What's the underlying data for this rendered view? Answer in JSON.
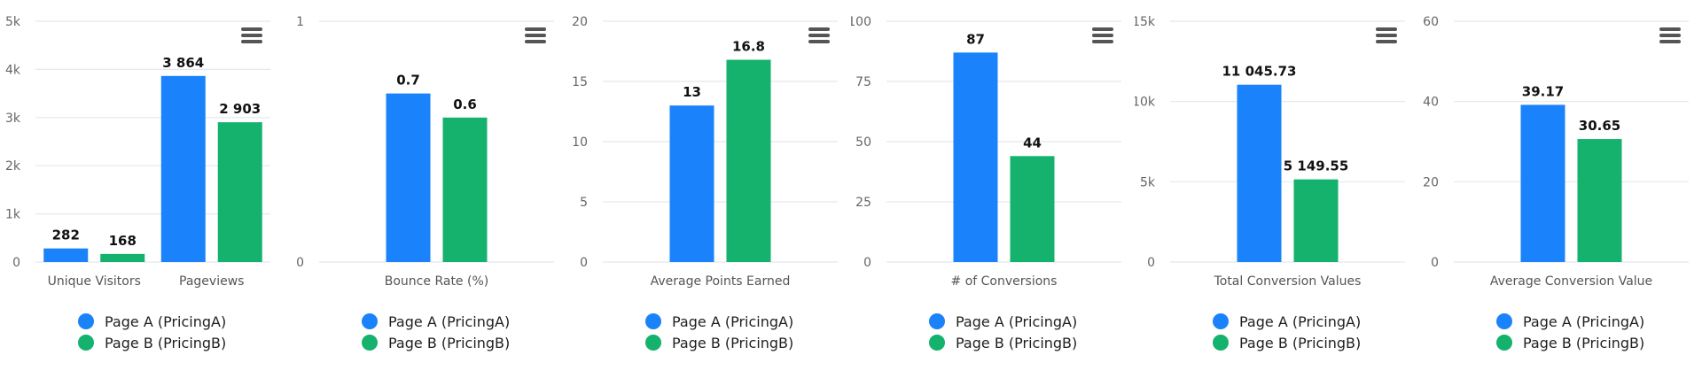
{
  "colors": {
    "series_a": "#1a82fb",
    "series_b": "#14b26c",
    "grid": "#e3e8f0",
    "menu_icon": "#555555"
  },
  "legend": {
    "series_a": "Page A (PricingA)",
    "series_b": "Page B (PricingB)"
  },
  "menu_icon": "hamburger-menu-icon",
  "chart_data": [
    {
      "type": "bar",
      "categories": [
        "Unique Visitors",
        "Pageviews"
      ],
      "series": [
        {
          "name": "Page A (PricingA)",
          "values": [
            282,
            3864
          ],
          "labels": [
            "282",
            "3 864"
          ]
        },
        {
          "name": "Page B (PricingB)",
          "values": [
            168,
            2903
          ],
          "labels": [
            "168",
            "2 903"
          ]
        }
      ],
      "ylim": [
        0,
        5000
      ],
      "yticks": [
        0,
        1000,
        2000,
        3000,
        4000,
        5000
      ],
      "ytick_labels": [
        "0",
        "1k",
        "2k",
        "3k",
        "4k",
        "5k"
      ],
      "grid": true,
      "legend_position": "bottom"
    },
    {
      "type": "bar",
      "categories": [
        "Bounce Rate (%)"
      ],
      "series": [
        {
          "name": "Page A (PricingA)",
          "values": [
            0.7
          ],
          "labels": [
            "0.7"
          ]
        },
        {
          "name": "Page B (PricingB)",
          "values": [
            0.6
          ],
          "labels": [
            "0.6"
          ]
        }
      ],
      "ylim": [
        0,
        1
      ],
      "yticks": [
        0,
        1
      ],
      "ytick_labels": [
        "0",
        "1"
      ],
      "grid": true,
      "legend_position": "bottom"
    },
    {
      "type": "bar",
      "categories": [
        "Average Points Earned"
      ],
      "series": [
        {
          "name": "Page A (PricingA)",
          "values": [
            13
          ],
          "labels": [
            "13"
          ]
        },
        {
          "name": "Page B (PricingB)",
          "values": [
            16.8
          ],
          "labels": [
            "16.8"
          ]
        }
      ],
      "ylim": [
        0,
        20
      ],
      "yticks": [
        0,
        5,
        10,
        15,
        20
      ],
      "ytick_labels": [
        "0",
        "5",
        "10",
        "15",
        "20"
      ],
      "grid": true,
      "legend_position": "bottom"
    },
    {
      "type": "bar",
      "categories": [
        "# of Conversions"
      ],
      "series": [
        {
          "name": "Page A (PricingA)",
          "values": [
            87
          ],
          "labels": [
            "87"
          ]
        },
        {
          "name": "Page B (PricingB)",
          "values": [
            44
          ],
          "labels": [
            "44"
          ]
        }
      ],
      "ylim": [
        0,
        100
      ],
      "yticks": [
        0,
        25,
        50,
        75,
        100
      ],
      "ytick_labels": [
        "0",
        "25",
        "50",
        "75",
        "100"
      ],
      "grid": true,
      "legend_position": "bottom"
    },
    {
      "type": "bar",
      "categories": [
        "Total Conversion Values"
      ],
      "series": [
        {
          "name": "Page A (PricingA)",
          "values": [
            11045.73
          ],
          "labels": [
            "11 045.73"
          ]
        },
        {
          "name": "Page B (PricingB)",
          "values": [
            5149.55
          ],
          "labels": [
            "5 149.55"
          ]
        }
      ],
      "ylim": [
        0,
        15000
      ],
      "yticks": [
        0,
        5000,
        10000,
        15000
      ],
      "ytick_labels": [
        "0",
        "5k",
        "10k",
        "15k"
      ],
      "grid": true,
      "legend_position": "bottom"
    },
    {
      "type": "bar",
      "categories": [
        "Average Conversion Value"
      ],
      "series": [
        {
          "name": "Page A (PricingA)",
          "values": [
            39.17
          ],
          "labels": [
            "39.17"
          ]
        },
        {
          "name": "Page B (PricingB)",
          "values": [
            30.65
          ],
          "labels": [
            "30.65"
          ]
        }
      ],
      "ylim": [
        0,
        60
      ],
      "yticks": [
        0,
        20,
        40,
        60
      ],
      "ytick_labels": [
        "0",
        "20",
        "40",
        "60"
      ],
      "grid": true,
      "legend_position": "bottom"
    }
  ]
}
